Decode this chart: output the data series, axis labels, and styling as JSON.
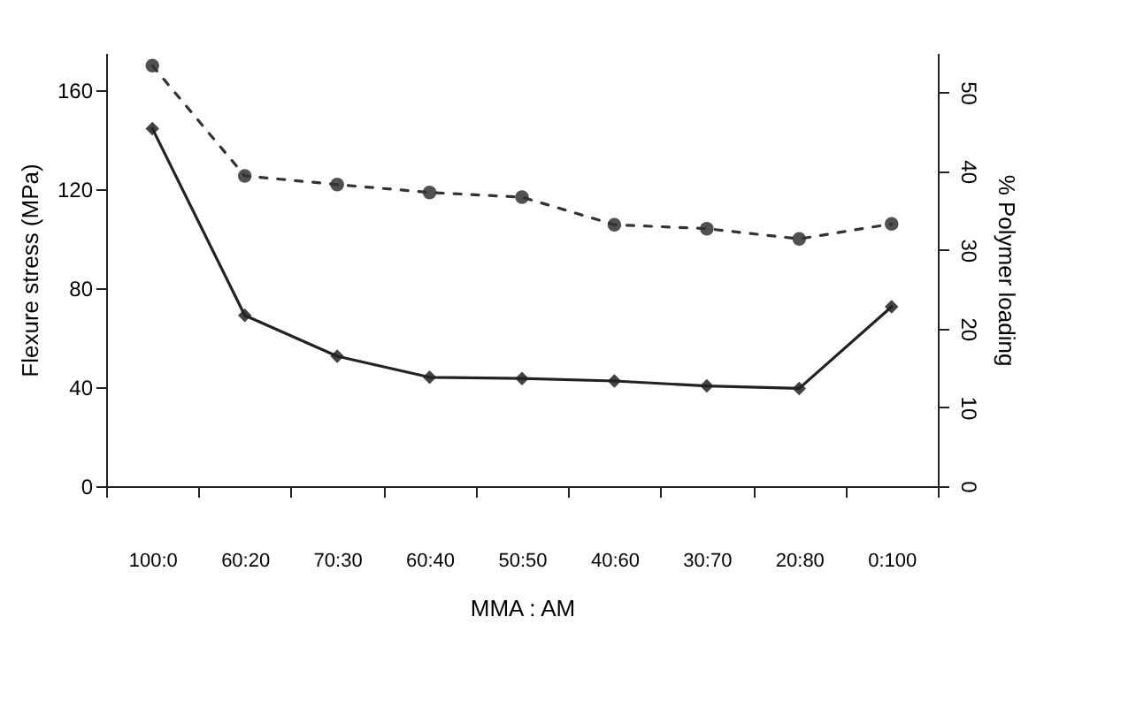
{
  "chart_data": {
    "type": "line",
    "xlabel": "MMA : AM",
    "ylabel": "Flexure stress (MPa)",
    "y2label": "% Polymer loading",
    "categories": [
      "100:0",
      "60:20",
      "70:30",
      "60:40",
      "50:50",
      "40:60",
      "30:70",
      "20:80",
      "0:100"
    ],
    "ylim": [
      0,
      175
    ],
    "yticks": [
      0,
      40,
      80,
      120,
      160
    ],
    "y2lim": [
      0,
      55
    ],
    "y2ticks": [
      0,
      10,
      20,
      30,
      40,
      50
    ],
    "grid": false,
    "series": [
      {
        "color": "#222222",
        "marker": "diamond",
        "line_style": "solid",
        "values": [
          144.5,
          69,
          52.5,
          44,
          43.5,
          42.5,
          40.5,
          39.5,
          72.5
        ]
      },
      {
        "color": "#333333",
        "marker": "circle",
        "line_style": "dotted",
        "axis": "y2",
        "values": [
          53.4,
          39.4,
          38.3,
          37.3,
          36.7,
          33.2,
          32.7,
          31.4,
          33.3
        ]
      }
    ]
  }
}
